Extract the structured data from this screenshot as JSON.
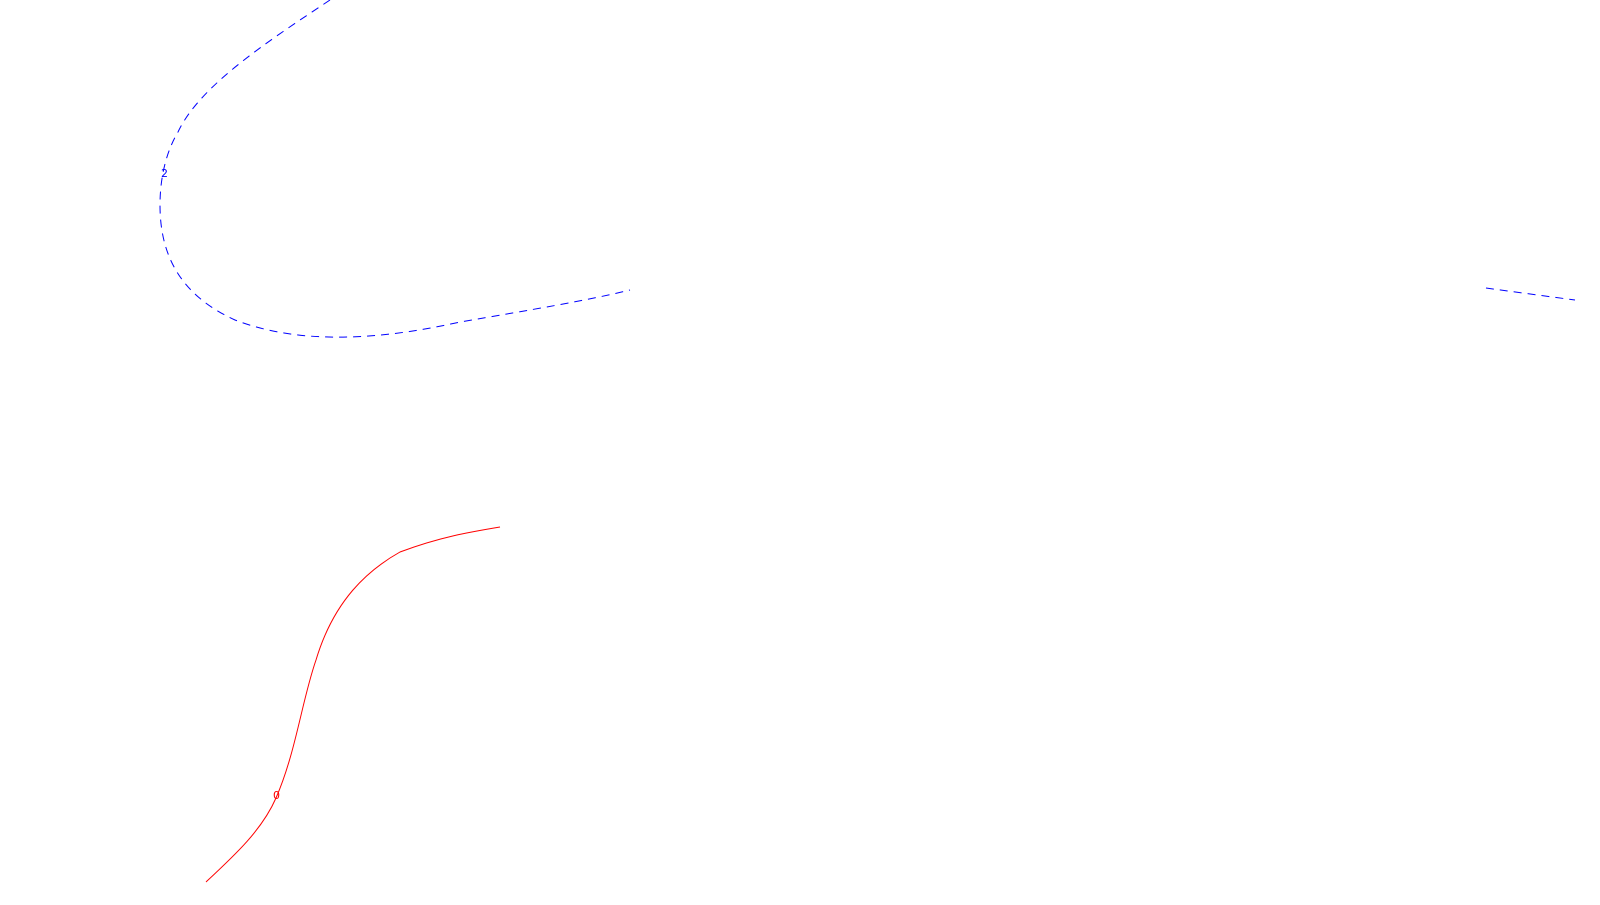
{
  "contours": [
    {
      "label": "2",
      "color": "#0000ff",
      "style": "dashed"
    },
    {
      "label": "0",
      "color": "#ff0000",
      "style": "solid"
    }
  ]
}
